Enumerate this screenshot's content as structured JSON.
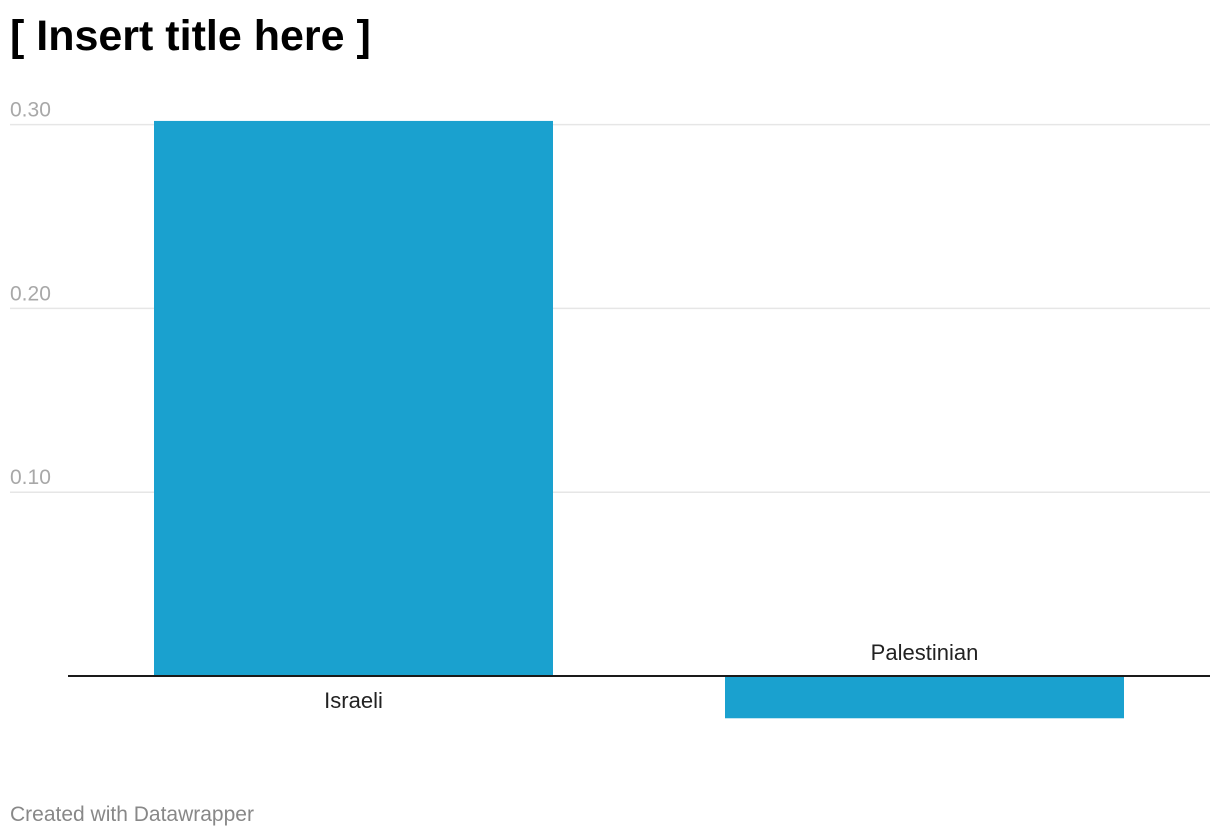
{
  "chart_title": "[ Insert title here ]",
  "footer": {
    "credit": "Created with Datawrapper"
  },
  "colors": {
    "bar": "#1aa1cf",
    "grid": "#e6e6e6",
    "tick_label": "#a8a8a8",
    "baseline": "#1a1a1a",
    "category_label": "#222222"
  },
  "chart_data": {
    "type": "bar",
    "title": "[ Insert title here ]",
    "categories": [
      "Israeli",
      "Palestinian"
    ],
    "values": [
      0.302,
      -0.023
    ],
    "ylim": [
      -0.04,
      0.3
    ],
    "yticks": [
      0.1,
      0.2,
      0.3
    ],
    "ytick_labels": [
      "0.10",
      "0.20",
      "0.30"
    ],
    "grid": true,
    "legend": "none",
    "xlabel": "",
    "ylabel": ""
  }
}
